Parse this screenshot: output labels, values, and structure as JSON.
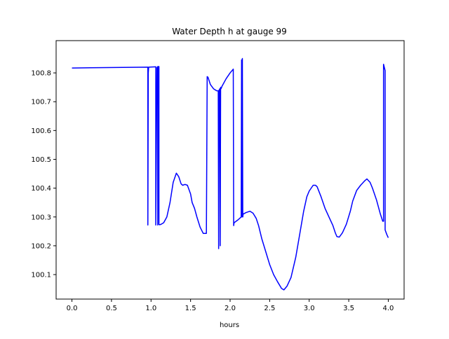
{
  "chart_data": {
    "type": "line",
    "title": "Water Depth h at gauge 99",
    "xlabel": "hours",
    "ylabel": "",
    "xlim": [
      -0.2,
      4.2
    ],
    "ylim": [
      100.015,
      100.912
    ],
    "grid": false,
    "colors": {
      "line": "#0000ff",
      "axes": "#000000",
      "background": "#ffffff"
    },
    "x_ticks": [
      {
        "value": 0.0,
        "label": "0.0"
      },
      {
        "value": 0.5,
        "label": "0.5"
      },
      {
        "value": 1.0,
        "label": "1.0"
      },
      {
        "value": 1.5,
        "label": "1.5"
      },
      {
        "value": 2.0,
        "label": "2.0"
      },
      {
        "value": 2.5,
        "label": "2.5"
      },
      {
        "value": 3.0,
        "label": "3.0"
      },
      {
        "value": 3.5,
        "label": "3.5"
      },
      {
        "value": 4.0,
        "label": "4.0"
      }
    ],
    "y_ticks": [
      {
        "value": 100.1,
        "label": "100.1"
      },
      {
        "value": 100.2,
        "label": "100.2"
      },
      {
        "value": 100.3,
        "label": "100.3"
      },
      {
        "value": 100.4,
        "label": "100.4"
      },
      {
        "value": 100.5,
        "label": "100.5"
      },
      {
        "value": 100.6,
        "label": "100.6"
      },
      {
        "value": 100.7,
        "label": "100.7"
      },
      {
        "value": 100.8,
        "label": "100.8"
      }
    ],
    "series": [
      {
        "x": [
          0.0,
          0.96,
          0.96,
          0.965,
          0.97,
          0.97,
          1.06,
          1.06,
          1.075,
          1.085,
          1.085,
          1.095,
          1.1,
          1.1,
          1.11,
          1.13,
          1.16,
          1.2,
          1.24,
          1.28,
          1.32,
          1.35,
          1.38,
          1.4,
          1.43,
          1.46,
          1.5,
          1.52,
          1.55,
          1.58,
          1.62,
          1.66,
          1.7,
          1.71,
          1.72,
          1.75,
          1.79,
          1.83,
          1.85,
          1.855,
          1.86,
          1.865,
          1.87,
          1.875,
          1.88,
          1.885,
          1.89,
          1.895,
          1.9,
          1.95,
          2.0,
          2.04,
          2.045,
          2.05,
          2.1,
          2.14,
          2.145,
          2.15,
          2.155,
          2.16,
          2.165,
          2.2,
          2.25,
          2.29,
          2.33,
          2.36,
          2.4,
          2.45,
          2.5,
          2.55,
          2.6,
          2.65,
          2.68,
          2.72,
          2.77,
          2.83,
          2.88,
          2.93,
          2.97,
          3.0,
          3.05,
          3.08,
          3.1,
          3.15,
          3.2,
          3.25,
          3.3,
          3.33,
          3.35,
          3.38,
          3.42,
          3.47,
          3.52,
          3.55,
          3.6,
          3.65,
          3.7,
          3.73,
          3.77,
          3.8,
          3.85,
          3.9,
          3.93,
          3.94,
          3.94,
          3.96,
          3.96,
          3.98,
          4.0
        ],
        "y": [
          100.817,
          100.82,
          100.272,
          100.8,
          100.82,
          100.82,
          100.821,
          100.272,
          100.818,
          100.822,
          100.272,
          100.822,
          100.822,
          100.274,
          100.273,
          100.275,
          100.28,
          100.3,
          100.35,
          100.42,
          100.452,
          100.44,
          100.415,
          100.41,
          100.413,
          100.41,
          100.38,
          100.35,
          100.33,
          100.3,
          100.265,
          100.243,
          100.243,
          100.787,
          100.785,
          100.76,
          100.745,
          100.738,
          100.738,
          100.19,
          100.74,
          100.742,
          100.745,
          100.2,
          100.75,
          100.745,
          100.748,
          100.752,
          100.755,
          100.78,
          100.8,
          100.813,
          100.27,
          100.28,
          100.29,
          100.3,
          100.845,
          100.3,
          100.85,
          100.3,
          100.31,
          100.315,
          100.32,
          100.313,
          100.295,
          100.27,
          100.225,
          100.18,
          100.135,
          100.1,
          100.075,
          100.052,
          100.047,
          100.06,
          100.09,
          100.16,
          100.24,
          100.32,
          100.37,
          100.39,
          100.41,
          100.41,
          100.405,
          100.37,
          100.33,
          100.3,
          100.27,
          100.245,
          100.232,
          100.23,
          100.245,
          100.275,
          100.32,
          100.355,
          100.392,
          100.41,
          100.425,
          100.432,
          100.42,
          100.4,
          100.36,
          100.31,
          100.285,
          100.285,
          100.83,
          100.808,
          100.255,
          100.24,
          100.228
        ]
      }
    ]
  }
}
